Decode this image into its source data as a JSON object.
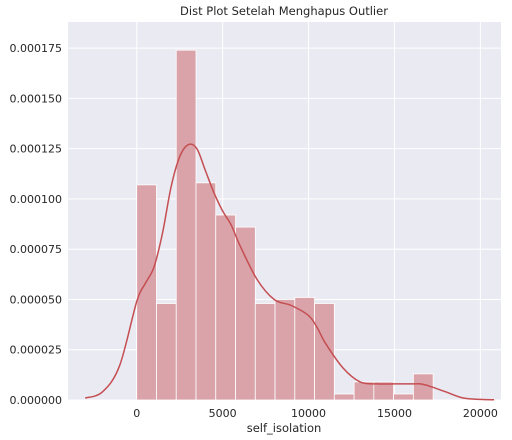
{
  "chart_data": {
    "type": "bar",
    "title": "Dist Plot Setelah Menghapus Outlier",
    "xlabel": "self_isolation",
    "ylabel": "",
    "xlim": [
      -4000,
      21200
    ],
    "ylim": [
      0,
      0.000188
    ],
    "x_ticks": [
      0,
      5000,
      10000,
      15000,
      20000
    ],
    "x_tick_labels": [
      "0",
      "5000",
      "10000",
      "15000",
      "20000"
    ],
    "y_ticks": [
      0,
      2.5e-05,
      5e-05,
      7.5e-05,
      0.0001,
      0.000125,
      0.00015,
      0.000175
    ],
    "y_tick_labels": [
      "0.000000",
      "0.000025",
      "0.000050",
      "0.000075",
      "0.000100",
      "0.000125",
      "0.000150",
      "0.000175"
    ],
    "grid": true,
    "bar_color": "#d9a3a9",
    "line_color": "#c44e52",
    "background_color": "#eaeaf2",
    "bins": [
      {
        "x0": 0,
        "x1": 1150,
        "value": 0.000107
      },
      {
        "x0": 1150,
        "x1": 2300,
        "value": 4.8e-05
      },
      {
        "x0": 2300,
        "x1": 3450,
        "value": 0.000174
      },
      {
        "x0": 3450,
        "x1": 4600,
        "value": 0.000108
      },
      {
        "x0": 4600,
        "x1": 5750,
        "value": 9.2e-05
      },
      {
        "x0": 5750,
        "x1": 6900,
        "value": 8.6e-05
      },
      {
        "x0": 6900,
        "x1": 8050,
        "value": 4.8e-05
      },
      {
        "x0": 8050,
        "x1": 9200,
        "value": 5e-05
      },
      {
        "x0": 9200,
        "x1": 10350,
        "value": 5.1e-05
      },
      {
        "x0": 10350,
        "x1": 11500,
        "value": 4.8e-05
      },
      {
        "x0": 11500,
        "x1": 12650,
        "value": 3e-06
      },
      {
        "x0": 12650,
        "x1": 13800,
        "value": 9e-06
      },
      {
        "x0": 13800,
        "x1": 14950,
        "value": 9e-06
      },
      {
        "x0": 14950,
        "x1": 16100,
        "value": 3e-06
      },
      {
        "x0": 16100,
        "x1": 17250,
        "value": 1.3e-05
      }
    ],
    "kde": {
      "name": "",
      "x": [
        -3000,
        -2000,
        -1000,
        0,
        500,
        1000,
        1500,
        2000,
        2500,
        3000,
        3500,
        4000,
        4500,
        5000,
        5500,
        6000,
        7000,
        8000,
        9000,
        10000,
        10500,
        11000,
        12000,
        13000,
        14000,
        15000,
        16000,
        16500,
        17000,
        18000,
        19000,
        20000,
        20800
      ],
      "y": [
        1e-06,
        4e-06,
        1.7e-05,
        4.9e-05,
        5.8e-05,
        6.6e-05,
        8.3e-05,
        0.000106,
        0.000121,
        0.000127,
        0.000125,
        0.000114,
        0.000103,
        9.4e-05,
        8.7e-05,
        7.7e-05,
        6e-05,
        5e-05,
        4.7e-05,
        4.2e-05,
        3.6e-05,
        2.8e-05,
        1.6e-05,
        9e-06,
        8e-06,
        8e-06,
        8e-06,
        8e-06,
        7e-06,
        4e-06,
        1e-06,
        3e-07,
        1e-07
      ]
    }
  }
}
